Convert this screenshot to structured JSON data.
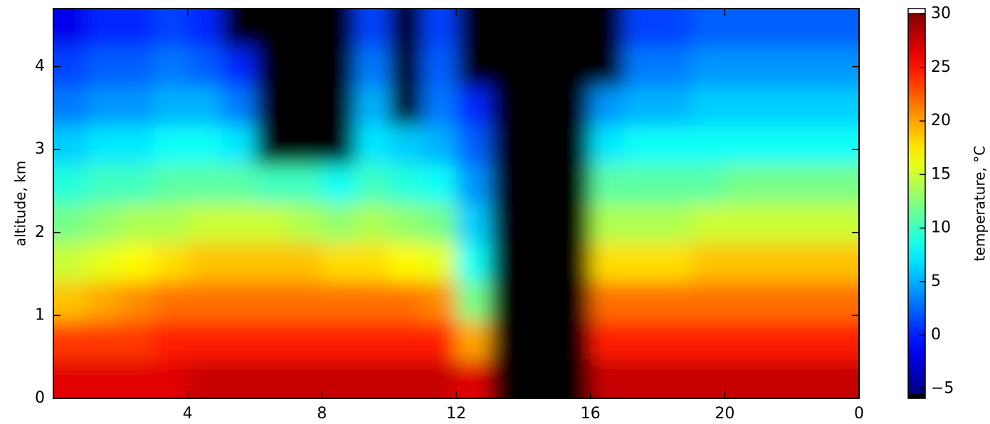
{
  "chart_data": {
    "type": "heatmap",
    "y_label": "altitude, km",
    "colorbar_label": "temperature, °C",
    "colormap": "jet",
    "under_color": "#000000",
    "over_color": "#ffffff",
    "x_edges": [
      0,
      1,
      2,
      3,
      4,
      5,
      6,
      7,
      8,
      9,
      10,
      11,
      12,
      13,
      14,
      15,
      16,
      17,
      18,
      19,
      20,
      21,
      22,
      23,
      24
    ],
    "y_edges": [
      0,
      0.47,
      0.94,
      1.41,
      1.88,
      2.35,
      2.82,
      3.29,
      3.76,
      4.23,
      4.7
    ],
    "z": [
      [
        27,
        27,
        27,
        27,
        28,
        28,
        28,
        28,
        28,
        28,
        28,
        28,
        27,
        -8,
        -8,
        -8,
        28,
        28,
        28,
        28,
        28,
        28,
        28,
        28
      ],
      [
        24,
        24,
        24,
        25,
        25,
        25,
        25,
        25,
        25,
        25,
        25,
        25,
        20,
        -8,
        -8,
        -8,
        25,
        25,
        25,
        25,
        25,
        25,
        25,
        25
      ],
      [
        19,
        20,
        21,
        22,
        22,
        22,
        22,
        22,
        22,
        22,
        22,
        21,
        12,
        -8,
        -8,
        -8,
        22,
        22,
        22,
        22,
        22,
        22,
        22,
        22
      ],
      [
        15,
        16,
        17,
        18,
        19,
        19,
        19,
        19,
        18,
        18,
        17,
        16,
        8,
        -8,
        -8,
        -8,
        18,
        18,
        18,
        19,
        19,
        19,
        19,
        19
      ],
      [
        12,
        13,
        14,
        14,
        15,
        15,
        15,
        14,
        13,
        14,
        13,
        12,
        6,
        -8,
        -8,
        -8,
        14,
        14,
        14,
        15,
        15,
        15,
        15,
        15
      ],
      [
        9,
        10,
        10,
        11,
        11,
        11,
        10,
        10,
        8,
        10,
        9,
        8,
        4,
        -8,
        -8,
        -8,
        11,
        11,
        11,
        11,
        12,
        12,
        12,
        12
      ],
      [
        6,
        7,
        7,
        8,
        8,
        7,
        -8,
        -8,
        -8,
        7,
        6,
        5,
        2,
        -8,
        -8,
        -8,
        7,
        8,
        8,
        8,
        8,
        8,
        8,
        8
      ],
      [
        3,
        4,
        4,
        5,
        5,
        3,
        -8,
        -8,
        -8,
        5,
        -8,
        3,
        0,
        -8,
        -8,
        -8,
        4,
        5,
        5,
        6,
        6,
        6,
        6,
        6
      ],
      [
        1,
        2,
        2,
        3,
        2,
        0,
        -8,
        -8,
        -8,
        3,
        -8,
        2,
        -8,
        -8,
        -8,
        -8,
        -8,
        3,
        3,
        4,
        4,
        4,
        4,
        4
      ],
      [
        -2,
        0,
        0,
        1,
        0,
        -8,
        -8,
        -8,
        -8,
        1,
        -8,
        1,
        -8,
        -8,
        -8,
        -8,
        -8,
        1,
        1,
        2,
        2,
        2,
        2,
        2
      ]
    ],
    "xlim": [
      0,
      24
    ],
    "xticks": [
      4,
      8,
      12,
      16,
      20,
      {
        "value": 24,
        "label": "0"
      }
    ],
    "ylim": [
      0,
      4.7
    ],
    "yticks": [
      0,
      1,
      2,
      3,
      4
    ],
    "clim": [
      -5.9,
      30.5
    ],
    "cticks": [
      {
        "value": -5,
        "label": "−5"
      },
      0,
      5,
      10,
      15,
      20,
      25,
      30
    ]
  }
}
